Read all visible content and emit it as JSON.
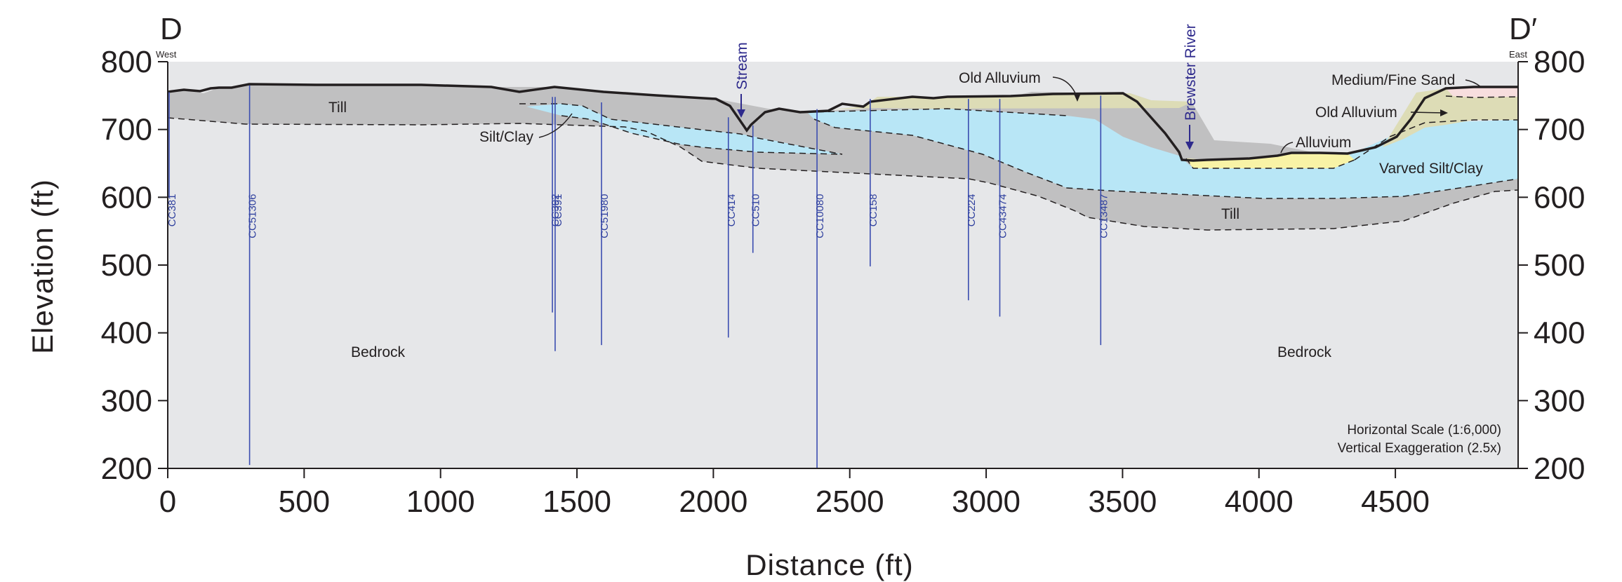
{
  "section": {
    "start_label": "D",
    "end_label": "D′",
    "start_direction": "West",
    "end_direction": "East"
  },
  "axes": {
    "x_title": "Distance (ft)",
    "y_title": "Elevation (ft)",
    "x_range": [
      0,
      4950
    ],
    "y_range": [
      200,
      800
    ],
    "x_ticks": [
      "0",
      "500",
      "1000",
      "1500",
      "2000",
      "2500",
      "3000",
      "3500",
      "4000",
      "4500"
    ],
    "y_ticks": [
      "800",
      "700",
      "600",
      "500",
      "400",
      "300",
      "200"
    ]
  },
  "units": {
    "till_west": "Till",
    "silt_clay": "Silt/Clay",
    "old_alluvium_mid": "Old Alluvium",
    "medium_fine_sand": "Medium/Fine Sand",
    "old_alluvium_east": "Old Alluvium",
    "alluvium": "Alluvium",
    "varved_silt_clay": "Varved Silt/Clay",
    "till_east": "Till",
    "bedrock_west": "Bedrock",
    "bedrock_east": "Bedrock"
  },
  "features": {
    "stream": "Stream",
    "river": "Brewster River"
  },
  "wells": [
    {
      "id": "CC381",
      "x": 0,
      "top": 755,
      "bottom": 600
    },
    {
      "id": "CC51306",
      "x": 300,
      "top": 765,
      "bottom": 205
    },
    {
      "id": "CC392",
      "x": 1410,
      "top": 748,
      "bottom": 430
    },
    {
      "id": "CC391",
      "x": 1420,
      "top": 748,
      "bottom": 373
    },
    {
      "id": "CC51980",
      "x": 1590,
      "top": 740,
      "bottom": 382
    },
    {
      "id": "CC414",
      "x": 2055,
      "top": 718,
      "bottom": 393
    },
    {
      "id": "CC510",
      "x": 2145,
      "top": 706,
      "bottom": 518
    },
    {
      "id": "CC10080",
      "x": 2380,
      "top": 730,
      "bottom": 200
    },
    {
      "id": "CC158",
      "x": 2575,
      "top": 745,
      "bottom": 498
    },
    {
      "id": "CC224",
      "x": 2935,
      "top": 745,
      "bottom": 448
    },
    {
      "id": "CC43474",
      "x": 3050,
      "top": 745,
      "bottom": 424
    },
    {
      "id": "CC13487",
      "x": 3420,
      "top": 750,
      "bottom": 382
    }
  ],
  "scale_note": {
    "horizontal": "Horizontal Scale (1:6,000)",
    "vertical": "Vertical Exaggeration (2.5x)"
  },
  "colors": {
    "bedrock": "#e6e7e9",
    "till": "#c0c0c1",
    "silt_clay": "#b8e6f6",
    "old_alluvium": "#dddcb6",
    "alluvium": "#f8f3a6",
    "sand": "#f7dede",
    "well_line": "#3b4db0",
    "surface": "#231f20"
  }
}
